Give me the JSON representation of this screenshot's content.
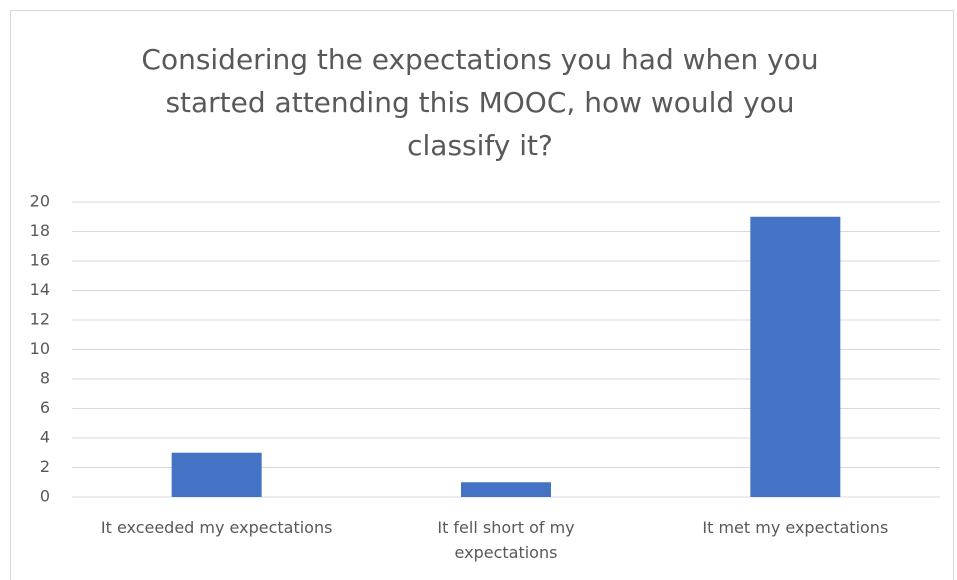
{
  "chart_data": {
    "type": "bar",
    "title": "Considering the expectations you had when you started attending this MOOC, how would you classify it?",
    "categories": [
      "It exceeded my expectations",
      "It fell short of my expectations",
      "It met my expectations"
    ],
    "values": [
      3,
      1,
      19
    ],
    "color": "#4472c4",
    "ylim": [
      0,
      20
    ],
    "yticks": [
      0,
      2,
      4,
      6,
      8,
      10,
      12,
      14,
      16,
      18,
      20
    ],
    "grid": true
  }
}
